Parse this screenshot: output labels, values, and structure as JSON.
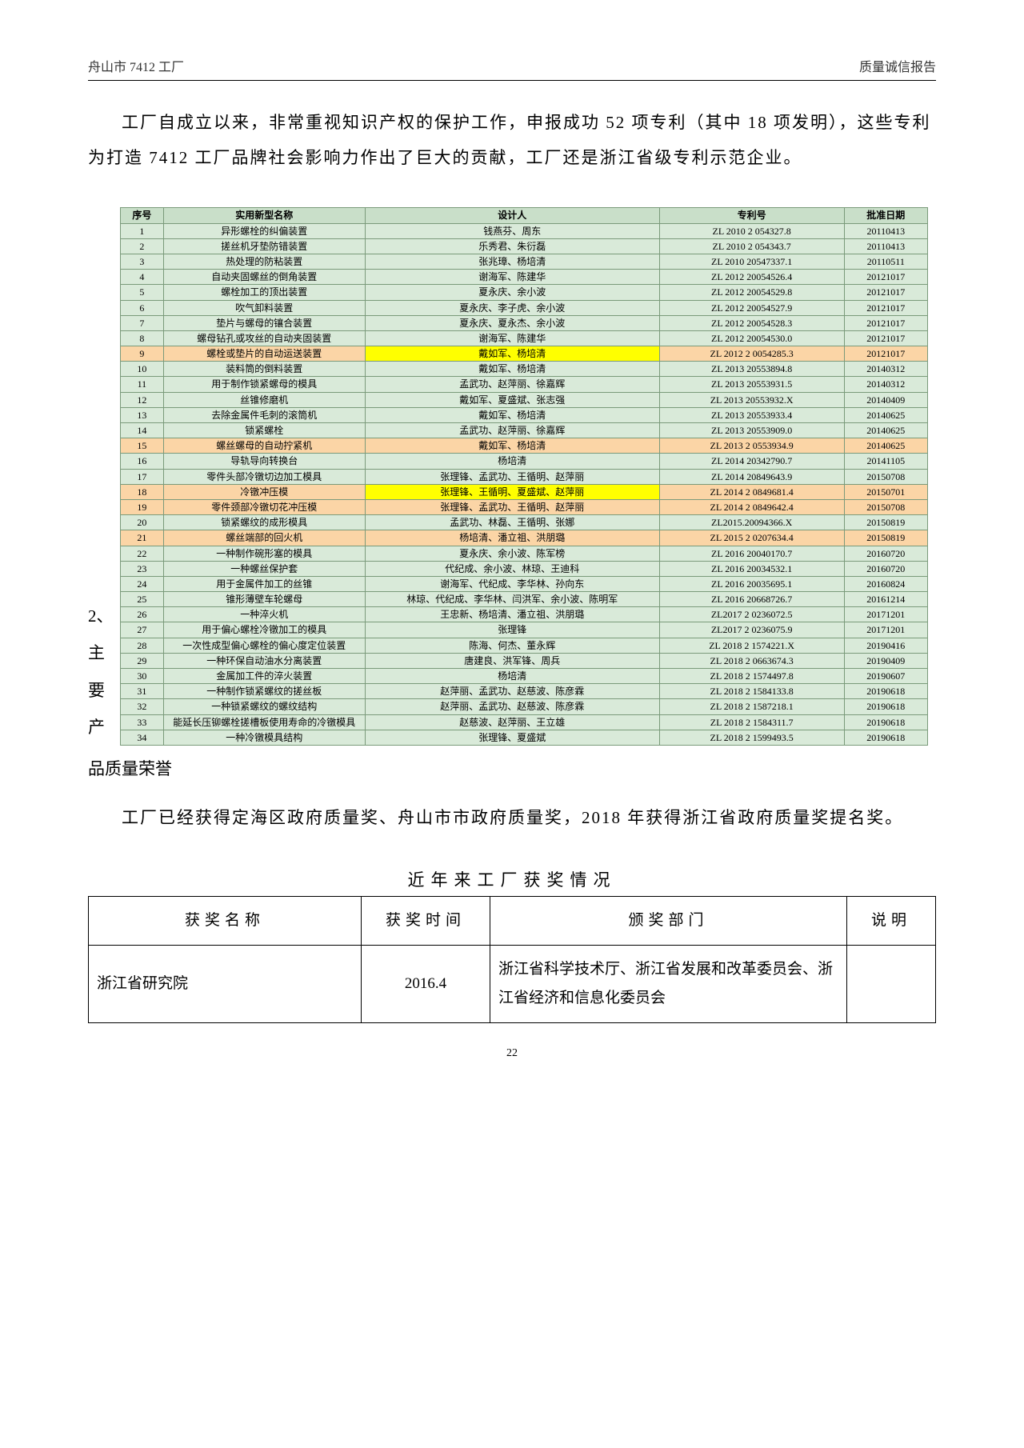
{
  "header": {
    "left": "舟山市 7412 工厂",
    "right": "质量诚信报告"
  },
  "intro": "工厂自成立以来，非常重视知识产权的保护工作，申报成功 52 项专利（其中 18 项发明），这些专利为打造 7412 工厂品牌社会影响力作出了巨大的贡献，工厂还是浙江省级专利示范企业。",
  "patents": {
    "columns": [
      "序号",
      "实用新型名称",
      "设计人",
      "专利号",
      "批准日期"
    ],
    "rows": [
      {
        "seq": "1",
        "name": "异形螺栓的纠偏装置",
        "designer": "钱燕芬、周东",
        "patno": "ZL 2010 2 054327.8",
        "date": "20110413"
      },
      {
        "seq": "2",
        "name": "搓丝机牙垫防错装置",
        "designer": "乐秀君、朱衍磊",
        "patno": "ZL 2010 2 054343.7",
        "date": "20110413"
      },
      {
        "seq": "3",
        "name": "热处理的防粘装置",
        "designer": "张兆璋、杨培清",
        "patno": "ZL 2010 20547337.1",
        "date": "20110511"
      },
      {
        "seq": "4",
        "name": "自动夹固螺丝的倒角装置",
        "designer": "谢海军、陈建华",
        "patno": "ZL 2012 20054526.4",
        "date": "20121017"
      },
      {
        "seq": "5",
        "name": "螺栓加工的顶出装置",
        "designer": "夏永庆、余小波",
        "patno": "ZL 2012 20054529.8",
        "date": "20121017"
      },
      {
        "seq": "6",
        "name": "吹气卸料装置",
        "designer": "夏永庆、李子虎、余小波",
        "patno": "ZL 2012 20054527.9",
        "date": "20121017"
      },
      {
        "seq": "7",
        "name": "垫片与螺母的镶合装置",
        "designer": "夏永庆、夏永杰、余小波",
        "patno": "ZL 2012 20054528.3",
        "date": "20121017"
      },
      {
        "seq": "8",
        "name": "螺母钻孔或攻丝的自动夹固装置",
        "designer": "谢海军、陈建华",
        "patno": "ZL 2012 20054530.0",
        "date": "20121017"
      },
      {
        "seq": "9",
        "name": "螺栓或垫片的自动运送装置",
        "designer": "戴如军、杨培清",
        "patno": "ZL 2012 2 0054285.3",
        "date": "20121017",
        "hl": "orange",
        "cellHl": {
          "designer": "yellow"
        }
      },
      {
        "seq": "10",
        "name": "装料筒的倒料装置",
        "designer": "戴如军、杨培清",
        "patno": "ZL 2013 20553894.8",
        "date": "20140312"
      },
      {
        "seq": "11",
        "name": "用于制作锁紧螺母的模具",
        "designer": "孟武功、赵萍丽、徐嘉辉",
        "patno": "ZL 2013 20553931.5",
        "date": "20140312"
      },
      {
        "seq": "12",
        "name": "丝锥修磨机",
        "designer": "戴如军、夏盛斌、张志强",
        "patno": "ZL 2013 20553932.X",
        "date": "20140409"
      },
      {
        "seq": "13",
        "name": "去除金属件毛刺的滚筒机",
        "designer": "戴如军、杨培清",
        "patno": "ZL 2013 20553933.4",
        "date": "20140625"
      },
      {
        "seq": "14",
        "name": "锁紧螺栓",
        "designer": "孟武功、赵萍丽、徐嘉辉",
        "patno": "ZL 2013 20553909.0",
        "date": "20140625"
      },
      {
        "seq": "15",
        "name": "螺丝螺母的自动拧紧机",
        "designer": "戴如军、杨培清",
        "patno": "ZL 2013 2 0553934.9",
        "date": "20140625",
        "hl": "orange"
      },
      {
        "seq": "16",
        "name": "导轨导向转换台",
        "designer": "杨培清",
        "patno": "ZL 2014 20342790.7",
        "date": "20141105"
      },
      {
        "seq": "17",
        "name": "零件头部冷镦切边加工模具",
        "designer": "张理锋、孟武功、王循明、赵萍丽",
        "patno": "ZL 2014 20849643.9",
        "date": "20150708"
      },
      {
        "seq": "18",
        "name": "冷镦冲压模",
        "designer": "张理锋、王循明、夏盛斌、赵萍丽",
        "patno": "ZL 2014 2 0849681.4",
        "date": "20150701",
        "hl": "orange",
        "cellHl": {
          "designer": "yellow"
        }
      },
      {
        "seq": "19",
        "name": "零件颈部冷镦切花冲压模",
        "designer": "张理锋、孟武功、王循明、赵萍丽",
        "patno": "ZL 2014 2 0849642.4",
        "date": "20150708",
        "hl": "orange"
      },
      {
        "seq": "20",
        "name": "锁紧螺纹的成形模具",
        "designer": "孟武功、林磊、王循明、张娜",
        "patno": "ZL2015.20094366.X",
        "date": "20150819"
      },
      {
        "seq": "21",
        "name": "螺丝端部的回火机",
        "designer": "杨培清、潘立祖、洪朋璐",
        "patno": "ZL 2015 2 0207634.4",
        "date": "20150819",
        "hl": "orange"
      },
      {
        "seq": "22",
        "name": "一种制作碗形塞的模具",
        "designer": "夏永庆、余小波、陈军榜",
        "patno": "ZL 2016 20040170.7",
        "date": "20160720"
      },
      {
        "seq": "23",
        "name": "一种螺丝保护套",
        "designer": "代纪成、余小波、林琼、王迪科",
        "patno": "ZL 2016 20034532.1",
        "date": "20160720"
      },
      {
        "seq": "24",
        "name": "用于金属件加工的丝锥",
        "designer": "谢海军、代纪成、李华林、孙向东",
        "patno": "ZL 2016 20035695.1",
        "date": "20160824"
      },
      {
        "seq": "25",
        "name": "锥形薄壁车轮螺母",
        "designer": "林琼、代纪成、李华林、闫洪军、余小波、陈明军",
        "patno": "ZL 2016 20668726.7",
        "date": "20161214"
      },
      {
        "seq": "26",
        "name": "一种淬火机",
        "designer": "王忠新、杨培清、潘立祖、洪朋璐",
        "patno": "ZL2017 2 0236072.5",
        "date": "20171201"
      },
      {
        "seq": "27",
        "name": "用于偏心螺栓冷镦加工的模具",
        "designer": "张理锋",
        "patno": "ZL2017 2 0236075.9",
        "date": "20171201"
      },
      {
        "seq": "28",
        "name": "一次性成型偏心螺栓的偏心度定位装置",
        "designer": "陈海、何杰、董永辉",
        "patno": "ZL 2018 2 1574221.X",
        "date": "20190416"
      },
      {
        "seq": "29",
        "name": "一种环保自动油水分离装置",
        "designer": "唐建良、洪军锋、周兵",
        "patno": "ZL 2018 2 0663674.3",
        "date": "20190409"
      },
      {
        "seq": "30",
        "name": "金属加工件的淬火装置",
        "designer": "杨培清",
        "patno": "ZL 2018 2 1574497.8",
        "date": "20190607"
      },
      {
        "seq": "31",
        "name": "一种制作锁紧螺纹的搓丝板",
        "designer": "赵萍丽、孟武功、赵慈波、陈彦霖",
        "patno": "ZL 2018 2 1584133.8",
        "date": "20190618"
      },
      {
        "seq": "32",
        "name": "一种锁紧螺纹的螺纹结构",
        "designer": "赵萍丽、孟武功、赵慈波、陈彦霖",
        "patno": "ZL 2018 2 1587218.1",
        "date": "20190618"
      },
      {
        "seq": "33",
        "name": "能延长压铆螺栓搓槽板使用寿命的冷镦模具",
        "designer": "赵慈波、赵萍丽、王立雄",
        "patno": "ZL 2018 2 1584311.7",
        "date": "20190618"
      },
      {
        "seq": "34",
        "name": "一种冷镦模具结构",
        "designer": "张理锋、夏盛斌",
        "patno": "ZL 2018 2 1599493.5",
        "date": "20190618"
      }
    ]
  },
  "sideLabel": "2、\n主\n要\n产",
  "honorsTitle": "品质量荣誉",
  "honorsBody": "工厂已经获得定海区政府质量奖、舟山市市政府质量奖，2018 年获得浙江省政府质量奖提名奖。",
  "awards": {
    "caption": "近年来工厂获奖情况",
    "columns": [
      "获奖名称",
      "获奖时间",
      "颁奖部门",
      "说明"
    ],
    "rows": [
      {
        "name": "浙江省研究院",
        "time": "2016.4",
        "dept": "浙江省科学技术厅、浙江省发展和改革委员会、浙江省经济和信息化委员会",
        "note": ""
      }
    ]
  },
  "pageNumber": "22"
}
